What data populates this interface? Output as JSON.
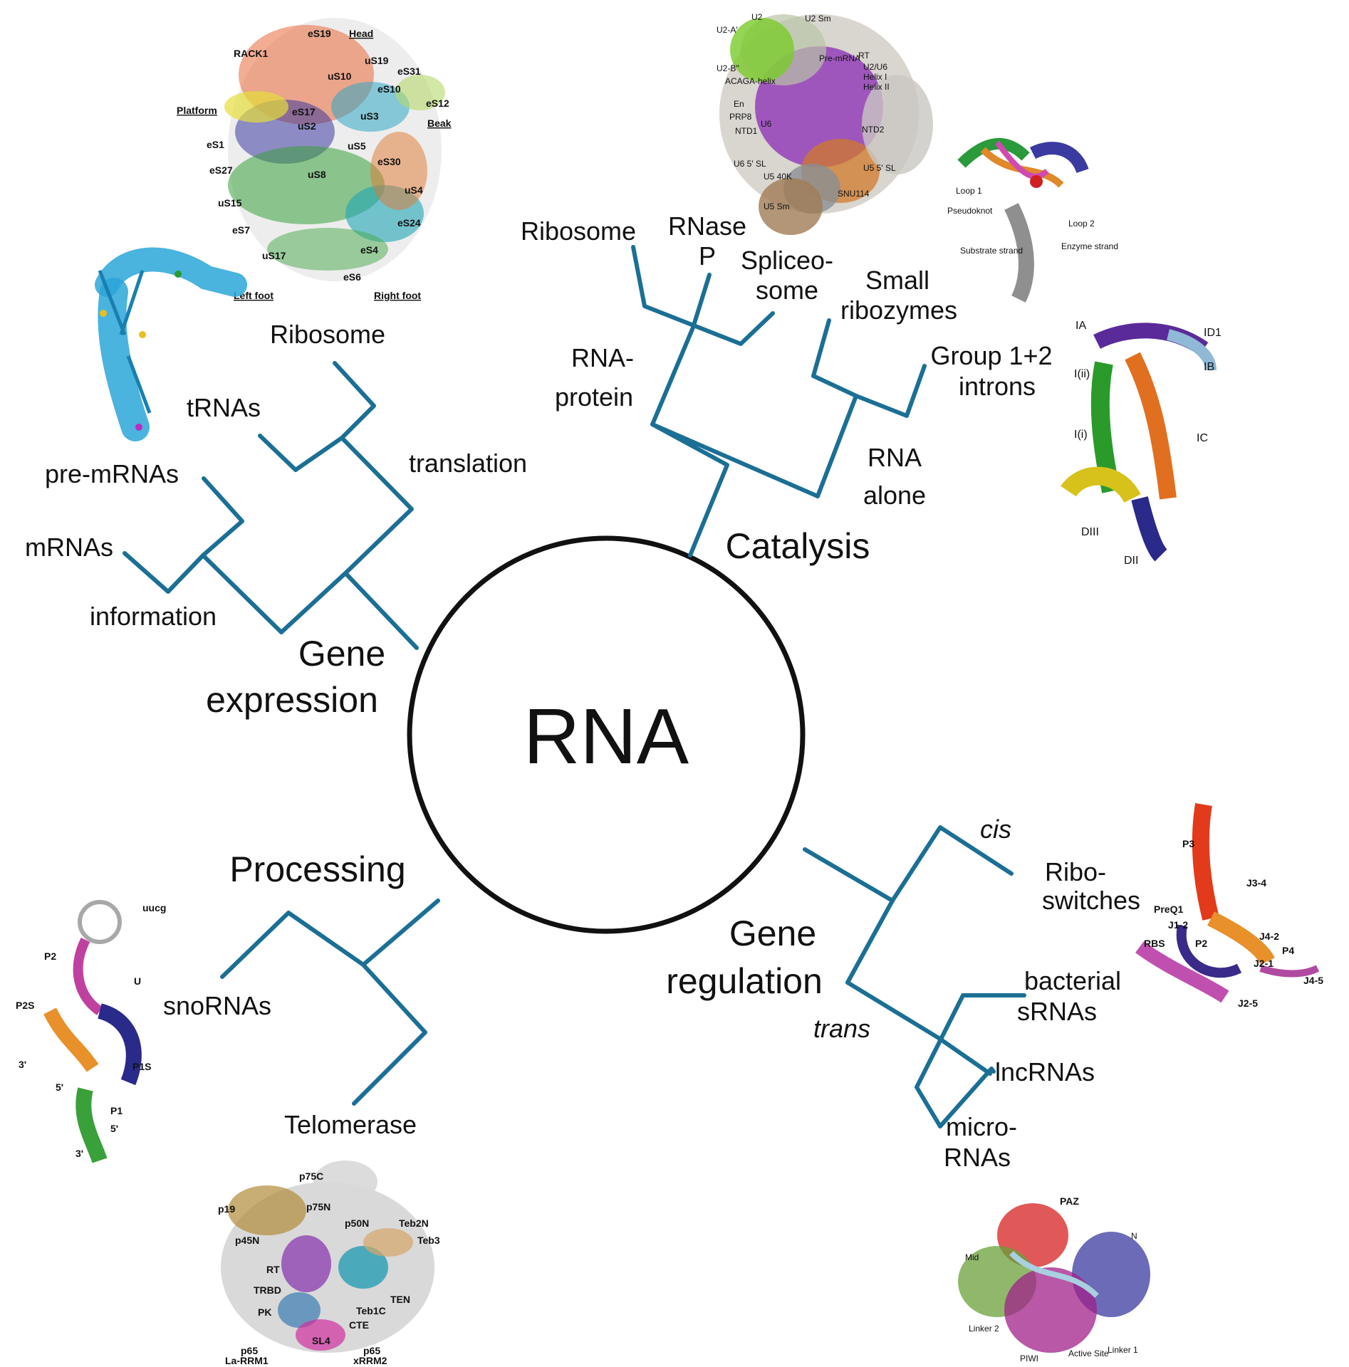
{
  "center": {
    "label": "RNA"
  },
  "categories": {
    "gene_expression": {
      "line1": "Gene",
      "line2": "expression"
    },
    "catalysis": {
      "label": "Catalysis"
    },
    "processing": {
      "label": "Processing"
    },
    "gene_regulation": {
      "line1": "Gene",
      "line2": "regulation"
    }
  },
  "branches": {
    "information": "information",
    "translation": "translation",
    "rna_protein": {
      "line1": "RNA-",
      "line2": "protein"
    },
    "rna_alone": {
      "line1": "RNA",
      "line2": "alone"
    },
    "cis": "cis",
    "trans": "trans"
  },
  "leaves": {
    "mrnas": "mRNAs",
    "pre_mrnas": "pre-mRNAs",
    "trnas": "tRNAs",
    "ribosome_left": "Ribosome",
    "ribosome_top": "Ribosome",
    "rnase_p": {
      "line1": "RNase",
      "line2": "P"
    },
    "spliceosome": {
      "line1": "Spliceo-",
      "line2": "some"
    },
    "small_ribozymes": {
      "line1": "Small",
      "line2": "ribozymes"
    },
    "group_introns": {
      "line1": "Group 1+2",
      "line2": "introns"
    },
    "snornas": "snoRNAs",
    "telomerase": "Telomerase",
    "riboswitches": {
      "line1": "Ribo-",
      "line2": "switches"
    },
    "bacterial_srnas": {
      "line1": "bacterial",
      "line2": "sRNAs"
    },
    "lncrnas": "lncRNAs",
    "micrornas": {
      "line1": "micro-",
      "line2": "RNAs"
    }
  },
  "structure_labels": {
    "ribosome": [
      "eS19",
      "Head",
      "RACK1",
      "uS19",
      "eS31",
      "uS10",
      "eS10",
      "eS12",
      "Platform",
      "eS17",
      "uS3",
      "Beak",
      "uS2",
      "eS1",
      "uS5",
      "eS30",
      "eS27",
      "uS8",
      "uS4",
      "uS15",
      "eS24",
      "eS7",
      "eS4",
      "uS17",
      "eS6",
      "Left foot",
      "Right foot"
    ],
    "spliceosome": [
      "U2",
      "U2 Sm",
      "U2-A'",
      "U2-B''",
      "Pre-mRNA",
      "RT",
      "U2/U6",
      "Helix I",
      "Helix II",
      "ACAGA-helix",
      "En",
      "PRP8",
      "NTD1",
      "NTD2",
      "U6",
      "U6 5' SL",
      "U5 40K",
      "U5 5' SL",
      "SNU114",
      "U5 Sm"
    ],
    "hammerhead": [
      "Substrate strand",
      "Enzyme strand",
      "Loop 1",
      "Loop 2",
      "Pseudoknot"
    ],
    "group_intron": [
      "IA",
      "ID1",
      "IB",
      "I(ii)",
      "I(i)",
      "IC",
      "DIII",
      "DII"
    ],
    "riboswitch": [
      "P3",
      "J3-4",
      "PreQ1",
      "J1-2",
      "J4-2",
      "P2",
      "RBS",
      "P4",
      "J2-1",
      "J4-5",
      "J2-5"
    ],
    "snorna": [
      "uucg",
      "P2",
      "U",
      "P2S",
      "3'",
      "P1S",
      "5'",
      "P1",
      "5'",
      "3'"
    ],
    "telomerase": [
      "p75C",
      "p19",
      "p75N",
      "p50N",
      "Teb2N",
      "p45N",
      "Teb3",
      "RT",
      "TRBD",
      "TEN",
      "Teb1C",
      "PK",
      "CTE",
      "SL4",
      "p65",
      "La-RRM1",
      "p65",
      "xRRM2"
    ],
    "argonaute": [
      "PAZ",
      "Mid",
      "N",
      "Linker 2",
      "PIWI",
      "Active Site",
      "Linker 1"
    ]
  },
  "colors": {
    "tree": "#1b6f95",
    "circle": "#111111",
    "text": "#111111"
  }
}
